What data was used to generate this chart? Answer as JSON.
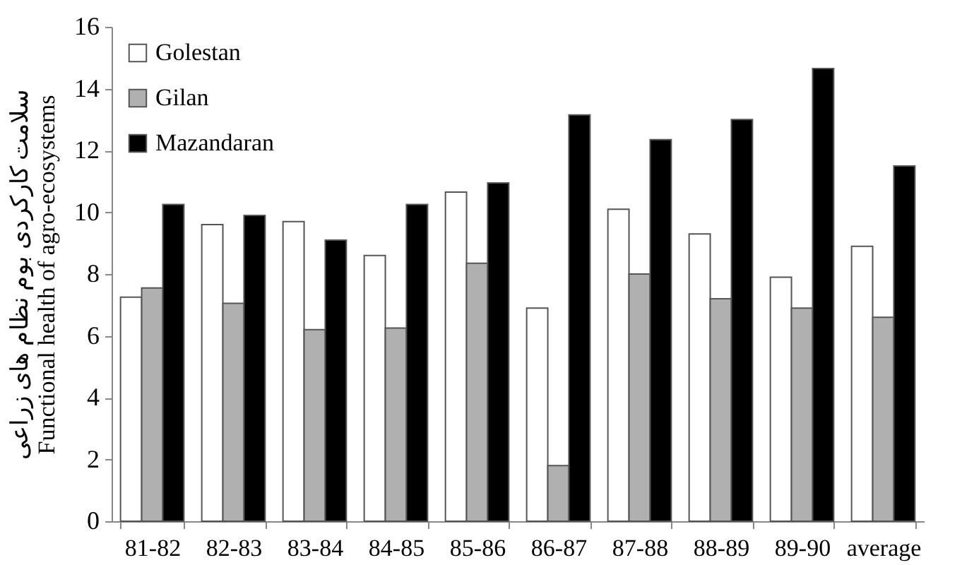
{
  "chart_data": {
    "type": "bar",
    "ylabel": "سلامت کارکردی بوم نظام های زراعی\nFunctional health of agro-ecosystems",
    "categories": [
      "81-82",
      "82-83",
      "83-84",
      "84-85",
      "85-86",
      "86-87",
      "87-88",
      "88-89",
      "89-90",
      "average"
    ],
    "series": [
      {
        "name": "Golestan",
        "color": "#ffffff",
        "values": [
          7.25,
          9.6,
          9.7,
          8.6,
          10.65,
          6.9,
          10.1,
          9.3,
          7.9,
          8.9
        ]
      },
      {
        "name": "Gilan",
        "color": "#b0b0b0",
        "values": [
          7.55,
          7.05,
          6.2,
          6.25,
          8.35,
          1.8,
          8.0,
          7.2,
          6.9,
          6.6
        ]
      },
      {
        "name": "Mazandaran",
        "color": "#000000",
        "values": [
          10.25,
          9.9,
          9.1,
          10.25,
          10.95,
          13.15,
          12.35,
          13.0,
          14.65,
          11.5
        ]
      }
    ],
    "ylim": [
      0,
      16
    ],
    "yticks": [
      0,
      2,
      4,
      6,
      8,
      10,
      12,
      14,
      16
    ],
    "grid": false,
    "legend": "top left"
  }
}
